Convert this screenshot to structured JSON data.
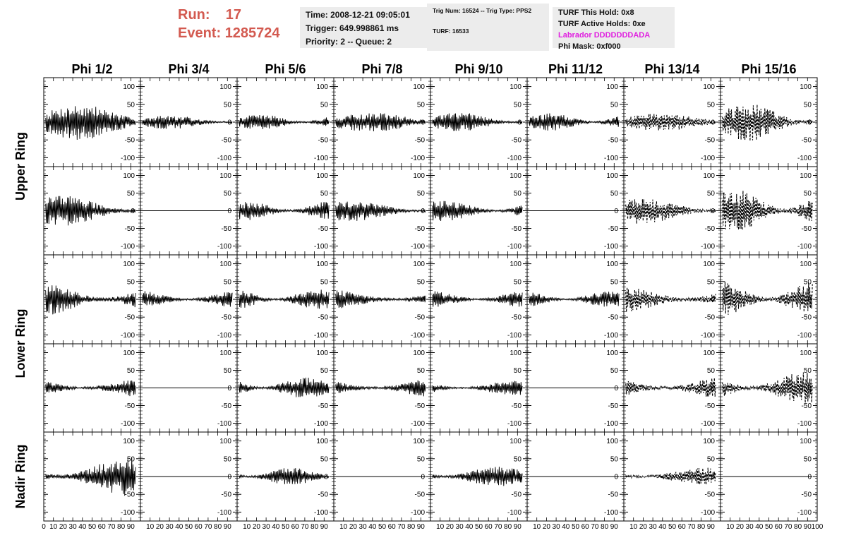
{
  "header": {
    "run_label": "Run:",
    "run_value": "17",
    "event_label": "Event:",
    "event_value": "1285724",
    "accent_color": "#d35a50",
    "time_line": "Time: 2008-12-21 09:05:01",
    "trigger_line": "Trigger: 649.998861 ms",
    "priority_line": "Priority: 2 -- Queue: 2",
    "trig_num_line": "Trig Num: 16524 -- Trig Type: PPS2",
    "turf_line": "TURF: 16533",
    "turf_hold_line": "TURF This Hold: 0x8",
    "turf_active_line": "TURF Active Holds: 0xe",
    "labrador_line": "Labrador DDDDDDDADA",
    "labrador_color": "#e020e0",
    "phi_mask_line": "Phi Mask: 0xf000"
  },
  "chart_data": {
    "type": "line",
    "title": "",
    "columns": [
      "Phi 1/2",
      "Phi 3/4",
      "Phi 5/6",
      "Phi 7/8",
      "Phi 9/10",
      "Phi 11/12",
      "Phi 13/14",
      "Phi 15/16"
    ],
    "row_labels": [
      "Upper Ring",
      "Lower Ring",
      "Nadir Ring"
    ],
    "panel_rows": 5,
    "xlim": [
      0,
      100
    ],
    "ylim": [
      -125,
      125
    ],
    "x_ticks": [
      0,
      10,
      20,
      30,
      40,
      50,
      60,
      70,
      80,
      90,
      100
    ],
    "x_tick_labels": [
      "0",
      "10",
      "20",
      "30",
      "40",
      "50",
      "60",
      "70",
      "80",
      "90",
      "100"
    ],
    "y_ticks": [
      -100,
      -50,
      0,
      50,
      100
    ],
    "y_tick_labels": [
      "-100",
      "-50",
      "0",
      "50",
      "100"
    ],
    "trace_length": 100,
    "amplitudes": [
      [
        50,
        20,
        22,
        28,
        28,
        25,
        25,
        55
      ],
      [
        45,
        0,
        28,
        30,
        30,
        0,
        38,
        65
      ],
      [
        50,
        25,
        28,
        28,
        25,
        22,
        40,
        55
      ],
      [
        30,
        0,
        30,
        30,
        20,
        0,
        35,
        45
      ],
      [
        55,
        0,
        25,
        0,
        28,
        0,
        25,
        0
      ]
    ],
    "dashed_columns": [
      6,
      7
    ],
    "grid": false
  }
}
